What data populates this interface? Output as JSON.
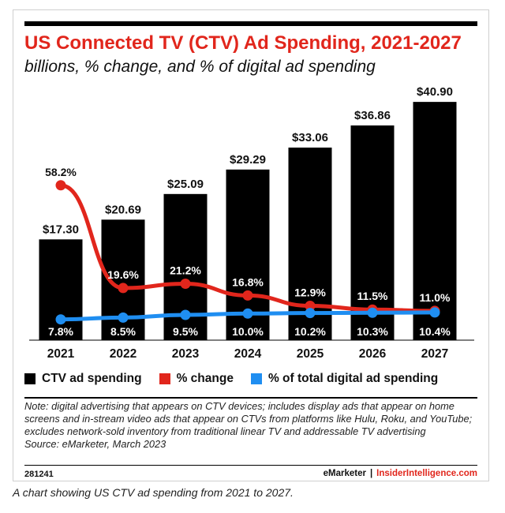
{
  "header": {
    "title": "US Connected TV (CTV) Ad Spending, 2021-2027",
    "subtitle": "billions, % change, and % of digital ad spending"
  },
  "chart_data": {
    "type": "bar",
    "categories": [
      "2021",
      "2022",
      "2023",
      "2024",
      "2025",
      "2026",
      "2027"
    ],
    "series": [
      {
        "name": "CTV ad spending",
        "kind": "bar",
        "color": "#000000",
        "values": [
          17.3,
          20.69,
          25.09,
          29.29,
          33.06,
          36.86,
          40.9
        ],
        "labels": [
          "$17.30",
          "$20.69",
          "$25.09",
          "$29.29",
          "$33.06",
          "$36.86",
          "$40.90"
        ]
      },
      {
        "name": "% change",
        "kind": "line",
        "color": "#e1261c",
        "values": [
          58.2,
          19.6,
          21.2,
          16.8,
          12.9,
          11.5,
          11.0
        ],
        "labels": [
          "58.2%",
          "19.6%",
          "21.2%",
          "16.8%",
          "12.9%",
          "11.5%",
          "11.0%"
        ]
      },
      {
        "name": "% of total digital ad spending",
        "kind": "line",
        "color": "#1f8ef1",
        "values": [
          7.8,
          8.5,
          9.5,
          10.0,
          10.2,
          10.3,
          10.4
        ],
        "labels": [
          "7.8%",
          "8.5%",
          "9.5%",
          "10.0%",
          "10.2%",
          "10.3%",
          "10.4%"
        ]
      }
    ],
    "ylim_bar": [
      0,
      42
    ],
    "ylim_pct": [
      0,
      70
    ],
    "grid": false,
    "legend_position": "bottom"
  },
  "legend": {
    "items": [
      {
        "label": "CTV ad spending",
        "color": "#000000"
      },
      {
        "label": "% change",
        "color": "#e1261c"
      },
      {
        "label": "% of total digital ad spending",
        "color": "#1f8ef1"
      }
    ]
  },
  "note": {
    "text": "Note: digital advertising that appears on CTV devices; includes display ads that appear on home screens and in-stream video ads that appear on CTVs from platforms like Hulu, Roku, and YouTube; excludes network-sold inventory from traditional linear TV and addressable TV advertising",
    "source": "Source: eMarketer, March 2023"
  },
  "footer": {
    "chart_id": "281241",
    "brand_a": "eMarketer",
    "separator": "|",
    "brand_b": "InsiderIntelligence.com"
  },
  "caption": "A chart showing US CTV ad spending from 2021 to 2027."
}
